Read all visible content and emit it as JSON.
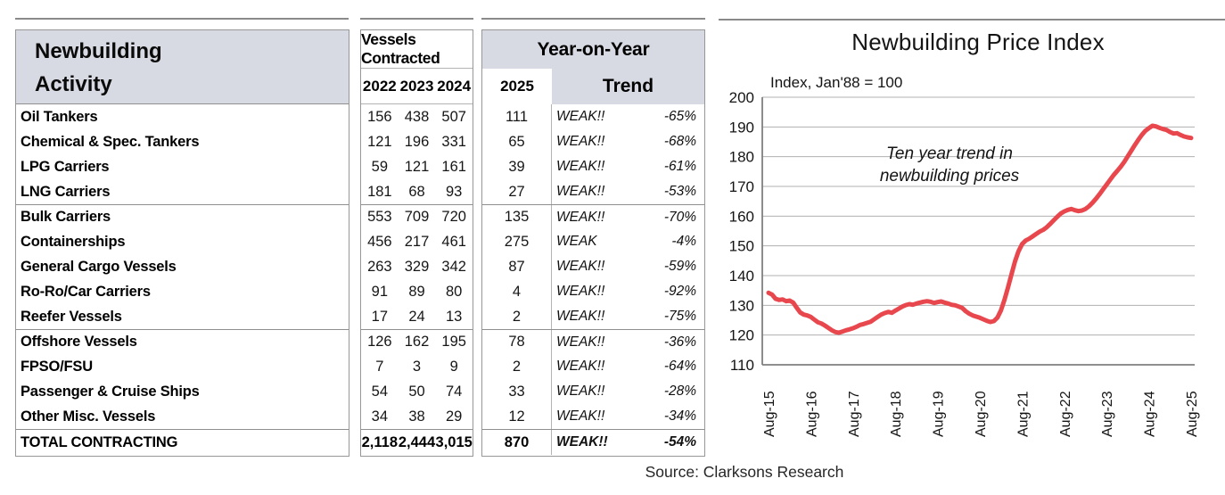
{
  "table": {
    "title_line1": "Newbuilding",
    "title_line2": "Activity",
    "vessels_contracted_header": "Vessels Contracted",
    "year_columns": [
      "2022",
      "2023",
      "2024"
    ],
    "col_2025": "2025",
    "yoy_header": "Year-on-Year",
    "trend_header": "Trend",
    "rows": [
      {
        "label": "Oil Tankers",
        "v2022": "156",
        "v2023": "438",
        "v2024": "507",
        "v2025": "111",
        "trend": "WEAK!!",
        "pct": "-65%",
        "group_start": false
      },
      {
        "label": "Chemical & Spec. Tankers",
        "v2022": "121",
        "v2023": "196",
        "v2024": "331",
        "v2025": "65",
        "trend": "WEAK!!",
        "pct": "-68%",
        "group_start": false
      },
      {
        "label": "LPG Carriers",
        "v2022": "59",
        "v2023": "121",
        "v2024": "161",
        "v2025": "39",
        "trend": "WEAK!!",
        "pct": "-61%",
        "group_start": false
      },
      {
        "label": "LNG Carriers",
        "v2022": "181",
        "v2023": "68",
        "v2024": "93",
        "v2025": "27",
        "trend": "WEAK!!",
        "pct": "-53%",
        "group_start": false
      },
      {
        "label": "Bulk Carriers",
        "v2022": "553",
        "v2023": "709",
        "v2024": "720",
        "v2025": "135",
        "trend": "WEAK!!",
        "pct": "-70%",
        "group_start": true
      },
      {
        "label": "Containerships",
        "v2022": "456",
        "v2023": "217",
        "v2024": "461",
        "v2025": "275",
        "trend": "WEAK",
        "pct": "-4%",
        "group_start": false
      },
      {
        "label": "General Cargo Vessels",
        "v2022": "263",
        "v2023": "329",
        "v2024": "342",
        "v2025": "87",
        "trend": "WEAK!!",
        "pct": "-59%",
        "group_start": false
      },
      {
        "label": "Ro-Ro/Car Carriers",
        "v2022": "91",
        "v2023": "89",
        "v2024": "80",
        "v2025": "4",
        "trend": "WEAK!!",
        "pct": "-92%",
        "group_start": false
      },
      {
        "label": "Reefer Vessels",
        "v2022": "17",
        "v2023": "24",
        "v2024": "13",
        "v2025": "2",
        "trend": "WEAK!!",
        "pct": "-75%",
        "group_start": false
      },
      {
        "label": "Offshore Vessels",
        "v2022": "126",
        "v2023": "162",
        "v2024": "195",
        "v2025": "78",
        "trend": "WEAK!!",
        "pct": "-36%",
        "group_start": true
      },
      {
        "label": "FPSO/FSU",
        "v2022": "7",
        "v2023": "3",
        "v2024": "9",
        "v2025": "2",
        "trend": "WEAK!!",
        "pct": "-64%",
        "group_start": false
      },
      {
        "label": "Passenger & Cruise Ships",
        "v2022": "54",
        "v2023": "50",
        "v2024": "74",
        "v2025": "33",
        "trend": "WEAK!!",
        "pct": "-28%",
        "group_start": false
      },
      {
        "label": "Other Misc. Vessels",
        "v2022": "34",
        "v2023": "38",
        "v2024": "29",
        "v2025": "12",
        "trend": "WEAK!!",
        "pct": "-34%",
        "group_start": false
      }
    ],
    "total": {
      "label": "TOTAL CONTRACTING",
      "v2022": "2,118",
      "v2023": "2,444",
      "v2024": "3,015",
      "v2025": "870",
      "trend": "WEAK!!",
      "pct": "-54%"
    }
  },
  "chart_data": {
    "type": "line",
    "title": "Newbuilding Price Index",
    "subtitle": "Index, Jan'88 = 100",
    "annotation_lines": [
      "Ten year trend in",
      "newbuilding prices"
    ],
    "x_tick_labels": [
      "Aug-15",
      "Aug-16",
      "Aug-17",
      "Aug-18",
      "Aug-19",
      "Aug-20",
      "Aug-21",
      "Aug-22",
      "Aug-23",
      "Aug-24",
      "Aug-25"
    ],
    "months_per_tick": 12,
    "ylim": [
      110,
      200
    ],
    "ytick_interval": 10,
    "grid": "horizontal",
    "line_color": "#e8484d",
    "grid_color": "#b0b0b0",
    "axis_color": "#7f7f7f",
    "series": [
      {
        "name": "Newbuilding Price Index (Jan'88 = 100), monthly Aug-15 to Aug-25",
        "values": [
          134.2,
          133.6,
          132.2,
          131.8,
          132.0,
          131.4,
          131.6,
          130.9,
          129.2,
          127.6,
          126.9,
          126.6,
          126.1,
          125.2,
          124.3,
          123.9,
          123.2,
          122.4,
          121.6,
          121.0,
          120.8,
          121.2,
          121.6,
          121.9,
          122.3,
          122.8,
          123.4,
          123.7,
          124.1,
          124.5,
          125.3,
          126.1,
          126.9,
          127.4,
          127.8,
          127.5,
          128.2,
          128.9,
          129.6,
          130.1,
          130.4,
          130.2,
          130.6,
          130.9,
          131.2,
          131.4,
          131.2,
          130.8,
          131.1,
          131.3,
          130.9,
          130.6,
          130.2,
          130.0,
          129.6,
          129.1,
          128.0,
          127.2,
          126.6,
          126.2,
          125.8,
          125.3,
          124.8,
          124.4,
          124.7,
          125.9,
          128.3,
          131.8,
          136.0,
          140.5,
          144.8,
          148.2,
          150.6,
          151.8,
          152.4,
          153.2,
          154.0,
          154.8,
          155.4,
          156.3,
          157.4,
          158.6,
          159.8,
          160.9,
          161.6,
          162.1,
          162.4,
          162.0,
          161.7,
          161.9,
          162.4,
          163.3,
          164.5,
          165.9,
          167.4,
          169.0,
          170.6,
          172.2,
          173.8,
          175.2,
          176.6,
          178.2,
          180.1,
          182.0,
          183.9,
          185.7,
          187.3,
          188.7,
          189.6,
          190.4,
          190.2,
          189.7,
          189.3,
          189.0,
          188.3,
          187.8,
          187.9,
          187.3,
          186.8,
          186.5,
          186.3
        ]
      }
    ]
  },
  "source": "Source: Clarksons Research"
}
